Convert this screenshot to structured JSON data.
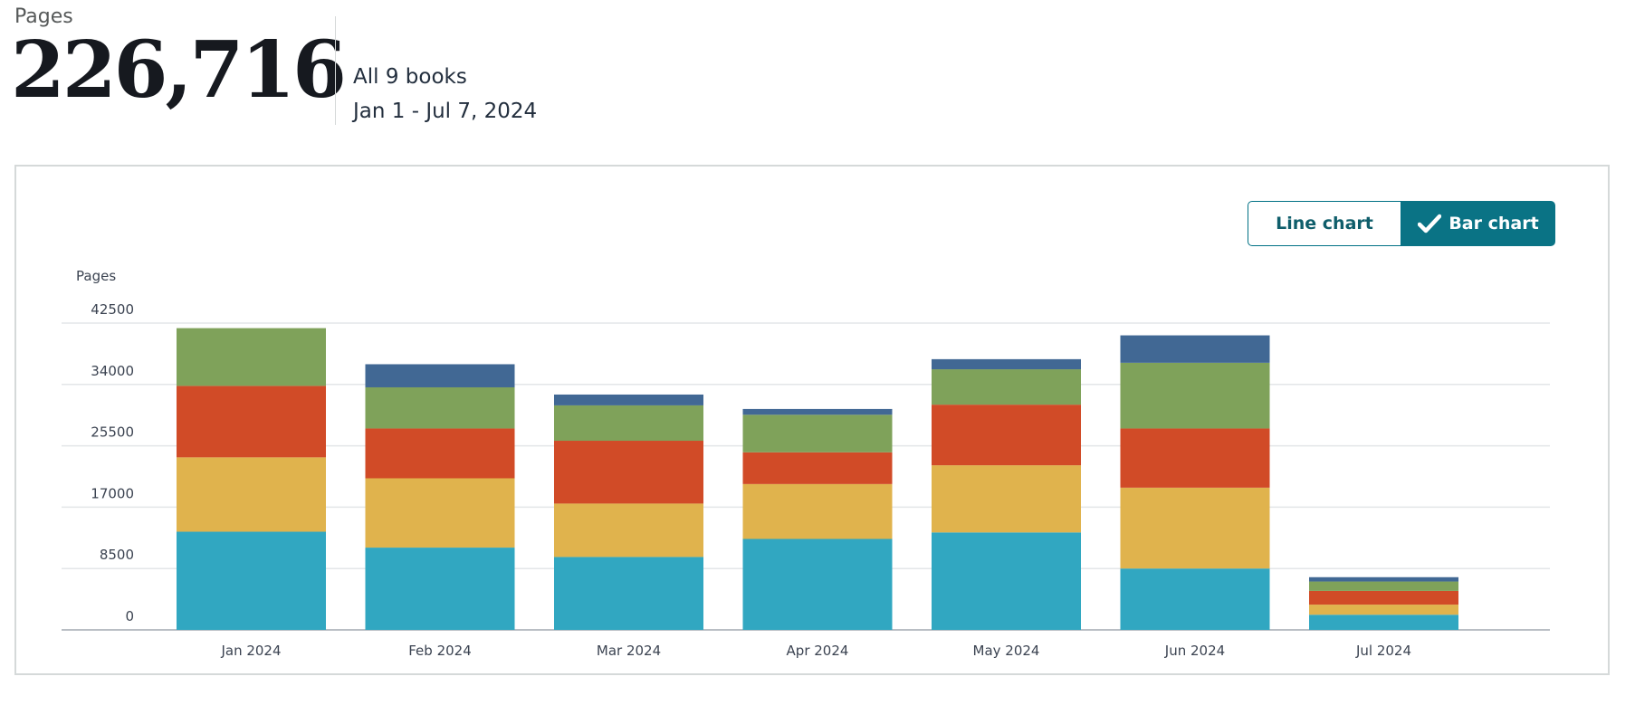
{
  "summary": {
    "label": "Pages",
    "value": "226,716",
    "scope": "All 9 books",
    "date_range": "Jan 1 - Jul 7, 2024"
  },
  "toggle": {
    "line_label": "Line chart",
    "bar_label": "Bar chart",
    "selected": "Bar chart"
  },
  "chart_data": {
    "type": "bar",
    "stacked": true,
    "title": "",
    "xlabel": "",
    "ylabel": "Pages",
    "ylim": [
      0,
      42500
    ],
    "yticks": [
      0,
      8500,
      17000,
      25500,
      34000,
      42500
    ],
    "categories": [
      "Jan 2024",
      "Feb 2024",
      "Mar 2024",
      "Apr 2024",
      "May 2024",
      "Jun 2024",
      "Jul 2024"
    ],
    "series": [
      {
        "color": "#31a7c1",
        "values": [
          13600,
          11400,
          10100,
          12600,
          13500,
          8500,
          2100
        ]
      },
      {
        "color": "#e0b34d",
        "values": [
          10300,
          9600,
          7400,
          7600,
          9300,
          11200,
          1400
        ]
      },
      {
        "color": "#d14b27",
        "values": [
          9900,
          6900,
          8700,
          4400,
          8400,
          8200,
          1900
        ]
      },
      {
        "color": "#7fa25a",
        "values": [
          8000,
          5700,
          4900,
          5200,
          4900,
          9100,
          1300
        ]
      },
      {
        "color": "#416894",
        "values": [
          0,
          3200,
          1500,
          800,
          1400,
          3800,
          600
        ]
      }
    ],
    "grid": true,
    "legend": "none"
  }
}
